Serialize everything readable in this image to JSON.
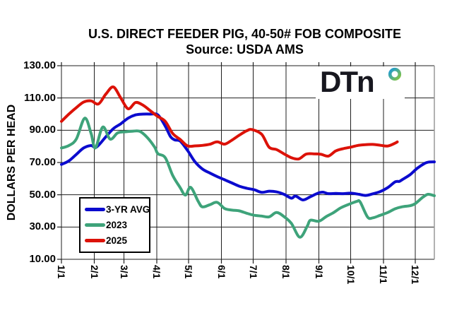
{
  "title": "U.S. DIRECT FEEDER PIG, 40-50# FOB COMPOSITE",
  "subtitle": "Source:  USDA AMS",
  "logo": {
    "text": "DTn",
    "ring_colors": [
      "#1d9ad6",
      "#86c440"
    ]
  },
  "chart_data": {
    "type": "line",
    "title": "U.S. DIRECT FEEDER PIG, 40-50# FOB COMPOSITE",
    "subtitle": "Source: USDA AMS",
    "xlabel": "",
    "ylabel": "DOLLARS PER HEAD",
    "ylim": [
      10,
      130
    ],
    "ytick_step": 20,
    "ytick_labels": [
      "130.00",
      "110.00",
      "90.00",
      "70.00",
      "50.00",
      "30.00",
      "10.00"
    ],
    "ytick_values": [
      130,
      110,
      90,
      70,
      50,
      30,
      10
    ],
    "xtick_labels": [
      "1/1",
      "2/1",
      "3/1",
      "4/1",
      "5/1",
      "6/1",
      "7/1",
      "8/1",
      "9/1",
      "10/1",
      "11/1",
      "12/1"
    ],
    "xtick_days": [
      1,
      32,
      60,
      91,
      121,
      152,
      182,
      213,
      244,
      274,
      305,
      335
    ],
    "x_unit": "day-of-year",
    "xlim": [
      1,
      353
    ],
    "grid": true,
    "grid_color": "#1f1f1f",
    "frame_right_color": "#999999",
    "legend_position": "inside-lower-left",
    "series": [
      {
        "name": "3-YR AVG",
        "color": "#0b0bce",
        "x": [
          1,
          8,
          15,
          22,
          29,
          34,
          43,
          50,
          57,
          64,
          71,
          78,
          85,
          92,
          99,
          104,
          108,
          113,
          120,
          127,
          134,
          141,
          148,
          155,
          162,
          169,
          176,
          183,
          190,
          197,
          204,
          211,
          218,
          222,
          229,
          236,
          244,
          248,
          253,
          260,
          267,
          274,
          281,
          288,
          295,
          302,
          309,
          316,
          320,
          323,
          330,
          337,
          344,
          348,
          353
        ],
        "values": [
          68.8,
          71,
          75,
          79,
          80.5,
          79.5,
          86,
          91,
          94,
          97.5,
          99.5,
          100,
          100,
          99.5,
          92.5,
          86,
          84,
          83.3,
          77.5,
          70.5,
          66,
          63.5,
          61.3,
          59.3,
          57.3,
          55.3,
          54,
          53.1,
          51.5,
          52.2,
          51.8,
          50.3,
          47.9,
          49.2,
          46.8,
          48.8,
          51.2,
          51.6,
          50.7,
          50.8,
          50.7,
          51,
          50.4,
          49.6,
          50.6,
          52,
          54.4,
          58,
          58.3,
          59.5,
          62.4,
          66.5,
          69.5,
          70.3,
          70.4
        ]
      },
      {
        "name": "2023",
        "color": "#3ea37a",
        "x": [
          1,
          8,
          15,
          23,
          29,
          33,
          40,
          47,
          54,
          61,
          68,
          75,
          82,
          89,
          92,
          99,
          106,
          113,
          118,
          123,
          130,
          134,
          141,
          148,
          155,
          162,
          169,
          176,
          183,
          190,
          197,
          204,
          211,
          218,
          226,
          233,
          236,
          244,
          251,
          258,
          265,
          274,
          280,
          283,
          290,
          295,
          302,
          309,
          316,
          323,
          330,
          335,
          342,
          347,
          353
        ],
        "values": [
          79,
          80.5,
          84.5,
          97.5,
          88,
          79,
          92,
          84.5,
          88.3,
          89,
          89.4,
          89.3,
          85.5,
          79.5,
          75.5,
          73,
          62,
          54.5,
          49.8,
          54.6,
          46,
          42.5,
          43.8,
          45.3,
          41.5,
          40.5,
          40,
          38.5,
          37.3,
          36.8,
          36.3,
          39,
          36.5,
          32.3,
          23.7,
          30.5,
          34.2,
          33.6,
          36.5,
          39,
          42,
          44.5,
          45.9,
          45.5,
          36.2,
          35.7,
          37.3,
          39,
          41.3,
          42.6,
          43.2,
          44.5,
          48.4,
          50.3,
          49.4
        ]
      },
      {
        "name": "2025",
        "color": "#dc1208",
        "x": [
          1,
          8,
          15,
          22,
          29,
          36,
          43,
          50,
          57,
          64,
          71,
          78,
          85,
          92,
          99,
          106,
          113,
          120,
          127,
          134,
          141,
          148,
          155,
          162,
          169,
          176,
          181,
          190,
          197,
          204,
          211,
          218,
          225,
          232,
          239,
          246,
          253,
          260,
          267,
          274,
          281,
          288,
          295,
          302,
          309,
          316,
          318
        ],
        "values": [
          95.5,
          100,
          104,
          107.5,
          108.2,
          106.3,
          112.5,
          116.8,
          110,
          103.3,
          107.2,
          105.5,
          102,
          98.5,
          95.5,
          88,
          84.3,
          80.3,
          80.3,
          80.6,
          81.3,
          82.8,
          81.4,
          83.9,
          87,
          89.7,
          90.4,
          87.5,
          79.5,
          78,
          75.4,
          73,
          72.2,
          75.2,
          75.4,
          75.1,
          74,
          77.2,
          78.6,
          79.5,
          80.6,
          81.1,
          81.2,
          80.7,
          80.2,
          82,
          82.8
        ]
      }
    ]
  }
}
